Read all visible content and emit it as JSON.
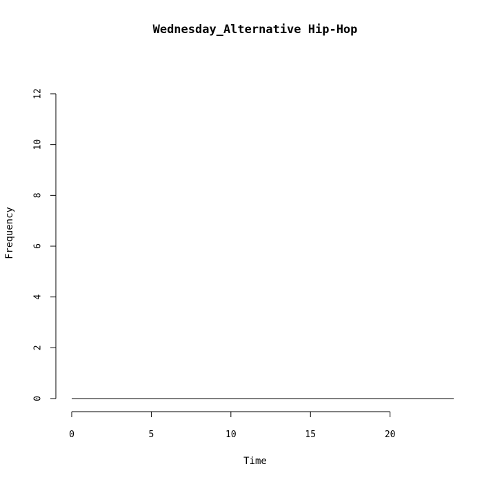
{
  "chart_data": {
    "type": "line",
    "title": "Wednesday_Alternative Hip-Hop",
    "xlabel": "Time",
    "ylabel": "Frequency",
    "xlim": [
      0,
      24
    ],
    "ylim": [
      0,
      12
    ],
    "x_ticks": [
      0,
      5,
      10,
      15,
      20
    ],
    "y_ticks": [
      0,
      2,
      4,
      6,
      8,
      10,
      12
    ],
    "grid": false,
    "series": [
      {
        "x": [
          0,
          1,
          2,
          3,
          4,
          5,
          6,
          7,
          8,
          9,
          10,
          11,
          12,
          13,
          14,
          15,
          16,
          17,
          18,
          19,
          20,
          21,
          22,
          23,
          24
        ],
        "values": [
          0,
          0,
          0,
          0,
          0,
          0,
          0,
          0,
          0,
          0,
          0,
          0,
          0,
          0,
          0,
          0,
          0,
          0,
          0,
          0,
          0,
          0,
          0,
          0,
          0
        ],
        "color": "#000000"
      }
    ]
  }
}
